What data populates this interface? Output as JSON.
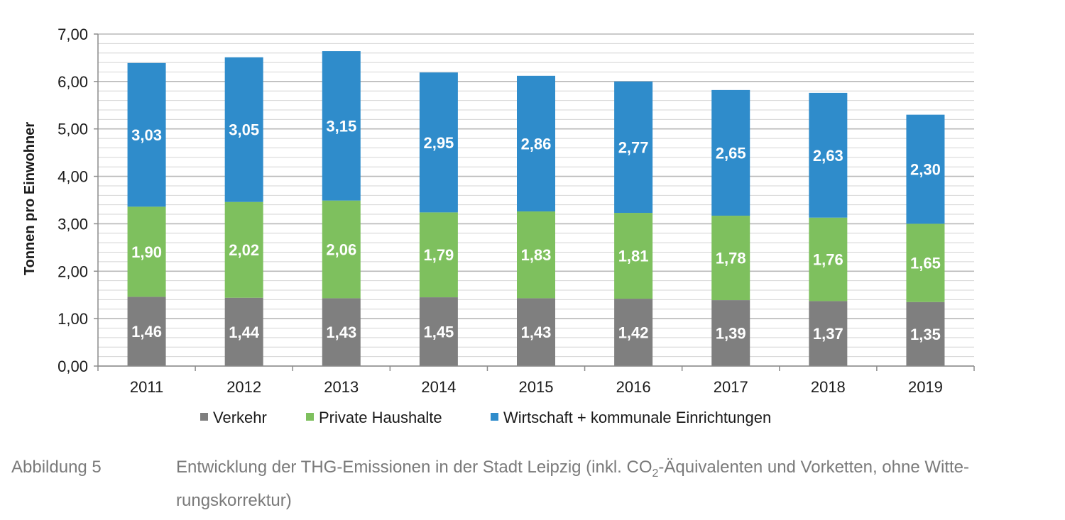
{
  "chart_data": {
    "type": "bar",
    "stacked": true,
    "categories": [
      "2011",
      "2012",
      "2013",
      "2014",
      "2015",
      "2016",
      "2017",
      "2018",
      "2019"
    ],
    "series": [
      {
        "name": "Verkehr",
        "color": "#7f7f7f",
        "values": [
          1.46,
          1.44,
          1.43,
          1.45,
          1.43,
          1.42,
          1.39,
          1.37,
          1.35
        ],
        "labels": [
          "1,46",
          "1,44",
          "1,43",
          "1,45",
          "1,43",
          "1,42",
          "1,39",
          "1,37",
          "1,35"
        ]
      },
      {
        "name": "Private Haushalte",
        "color": "#7ec05e",
        "values": [
          1.9,
          2.02,
          2.06,
          1.79,
          1.83,
          1.81,
          1.78,
          1.76,
          1.65
        ],
        "labels": [
          "1,90",
          "2,02",
          "2,06",
          "1,79",
          "1,83",
          "1,81",
          "1,78",
          "1,76",
          "1,65"
        ]
      },
      {
        "name": "Wirtschaft + kommunale Einrichtungen",
        "color": "#2f8ccb",
        "values": [
          3.03,
          3.05,
          3.15,
          2.95,
          2.86,
          2.77,
          2.65,
          2.63,
          2.3
        ],
        "labels": [
          "3,03",
          "3,05",
          "3,15",
          "2,95",
          "2,86",
          "2,77",
          "2,65",
          "2,63",
          "2,30"
        ]
      }
    ],
    "ylabel": "Tonnen pro Einwohner",
    "xlabel": "",
    "ylim": [
      0,
      7
    ],
    "yticks": [
      "0,00",
      "1,00",
      "2,00",
      "3,00",
      "4,00",
      "5,00",
      "6,00",
      "7,00"
    ],
    "grid": true,
    "legend_position": "bottom"
  },
  "caption": {
    "number": "Abbildung 5",
    "text_before": "Entwicklung der THG-Emissionen in der Stadt Leipzig (inkl. CO",
    "subscript": "2",
    "text_after": "-Äquivalenten und Vorketten, ohne Witte-rungskorrektur)"
  }
}
